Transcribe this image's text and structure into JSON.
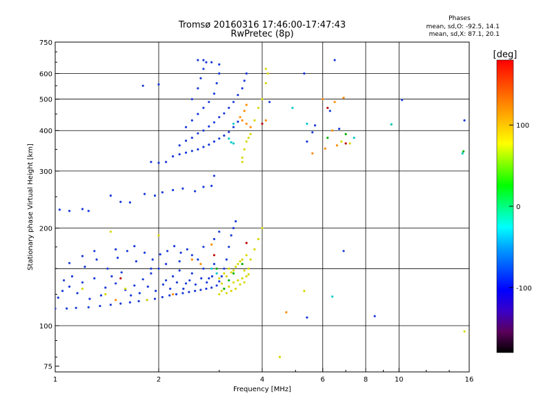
{
  "chart_data": {
    "type": "scatter",
    "title": "Tromsø 20160316 17:46:00-17:47:43",
    "subtitle": "RwPretec (8p)",
    "stats_title": "Phases",
    "stats_o": "mean, sd,O: -92.5, 14.1",
    "stats_x": "mean, sd,X: 87.1, 20.1",
    "xlabel": "Frequency [MHz]",
    "ylabel": "Stationary phase Virtual Height [km]",
    "x_scale": "log",
    "y_scale": "log",
    "xlim": [
      1,
      16
    ],
    "ylim": [
      72,
      750
    ],
    "x_ticks": [
      "1",
      "2",
      "4",
      "6",
      "8",
      "10",
      "16"
    ],
    "y_ticks": [
      "75",
      "100",
      "200",
      "300",
      "400",
      "500",
      "600",
      "750"
    ],
    "x_grid": [
      2,
      4,
      6,
      8,
      10
    ],
    "y_grid": [
      100,
      150,
      200,
      300,
      400,
      500,
      600
    ],
    "grid": true,
    "colorbar": {
      "label": "[deg]",
      "range": [
        -180,
        180
      ],
      "ticks": [
        "100",
        "0",
        "-100"
      ],
      "colors": [
        "#000000",
        "#5a005a",
        "#3a00c8",
        "#0000ff",
        "#0050ff",
        "#00a0ff",
        "#00ffff",
        "#00ff80",
        "#00ff00",
        "#80ff00",
        "#ffff00",
        "#ffc000",
        "#ff8000",
        "#ff4000",
        "#ff0000"
      ]
    },
    "series": [
      {
        "color": "#1a3ad8",
        "points": [
          [
            1.0,
            113
          ],
          [
            1.08,
            113
          ],
          [
            1.15,
            113.5
          ],
          [
            1.25,
            114
          ],
          [
            1.35,
            115
          ],
          [
            1.45,
            116
          ],
          [
            1.55,
            117
          ],
          [
            1.65,
            118
          ],
          [
            1.75,
            119
          ],
          [
            1.85,
            120
          ],
          [
            1.95,
            121
          ],
          [
            2.05,
            122.5
          ],
          [
            2.15,
            124
          ],
          [
            2.25,
            125
          ],
          [
            2.35,
            126
          ],
          [
            2.45,
            127
          ],
          [
            2.55,
            128
          ],
          [
            2.65,
            129
          ],
          [
            2.75,
            130
          ],
          [
            2.85,
            131
          ],
          [
            2.95,
            133
          ],
          [
            3.0,
            137
          ],
          [
            3.05,
            142
          ],
          [
            3.1,
            150
          ],
          [
            3.15,
            160
          ],
          [
            3.2,
            175
          ],
          [
            3.25,
            190
          ],
          [
            3.3,
            200
          ],
          [
            3.35,
            210
          ],
          [
            1.05,
            128
          ],
          [
            1.1,
            132
          ],
          [
            1.2,
            136
          ],
          [
            1.3,
            140
          ],
          [
            1.4,
            131
          ],
          [
            1.5,
            135
          ],
          [
            1.6,
            129
          ],
          [
            1.7,
            133
          ],
          [
            1.8,
            139
          ],
          [
            1.9,
            145
          ],
          [
            2.0,
            150
          ],
          [
            2.1,
            138
          ],
          [
            2.2,
            142
          ],
          [
            2.3,
            148
          ],
          [
            2.4,
            135
          ],
          [
            2.5,
            145
          ],
          [
            2.6,
            160
          ],
          [
            2.7,
            150
          ],
          [
            2.8,
            140
          ],
          [
            2.9,
            155
          ],
          [
            1.02,
            122
          ],
          [
            1.12,
            142
          ],
          [
            1.22,
            152
          ],
          [
            1.32,
            160
          ],
          [
            1.42,
            150
          ],
          [
            1.52,
            162
          ],
          [
            1.62,
            170
          ],
          [
            1.72,
            158
          ],
          [
            1.82,
            168
          ],
          [
            1.92,
            160
          ],
          [
            2.02,
            166
          ],
          [
            2.12,
            170
          ],
          [
            2.22,
            176
          ],
          [
            2.32,
            168
          ],
          [
            2.42,
            172
          ],
          [
            1.06,
            138
          ],
          [
            1.16,
            126
          ],
          [
            1.26,
            121
          ],
          [
            1.36,
            124
          ],
          [
            1.46,
            142
          ],
          [
            1.56,
            146
          ],
          [
            1.66,
            124
          ],
          [
            1.76,
            126
          ],
          [
            1.86,
            132
          ],
          [
            1.96,
            128
          ],
          [
            2.06,
            134
          ],
          [
            2.16,
            130
          ],
          [
            2.26,
            136
          ],
          [
            2.36,
            130
          ],
          [
            2.46,
            138
          ],
          [
            2.56,
            134
          ],
          [
            2.66,
            140
          ],
          [
            2.76,
            136
          ],
          [
            2.86,
            142
          ],
          [
            1.1,
            156
          ],
          [
            1.2,
            164
          ],
          [
            1.3,
            170
          ],
          [
            1.5,
            172
          ],
          [
            1.7,
            176
          ],
          [
            1.9,
            150
          ],
          [
            2.1,
            155
          ],
          [
            2.3,
            158
          ],
          [
            2.5,
            165
          ],
          [
            2.7,
            175
          ],
          [
            2.9,
            185
          ],
          [
            3.0,
            195
          ],
          [
            1.03,
            228
          ],
          [
            1.1,
            226
          ],
          [
            1.2,
            229
          ],
          [
            1.25,
            226
          ],
          [
            1.45,
            252
          ],
          [
            1.55,
            241
          ],
          [
            1.65,
            240
          ],
          [
            1.82,
            255
          ],
          [
            1.95,
            252
          ],
          [
            2.05,
            258
          ],
          [
            2.2,
            262
          ],
          [
            2.35,
            265
          ],
          [
            2.55,
            260
          ],
          [
            2.7,
            268
          ],
          [
            2.85,
            270
          ],
          [
            2.9,
            290
          ],
          [
            2.2,
            333
          ],
          [
            2.3,
            338
          ],
          [
            2.4,
            342
          ],
          [
            2.5,
            346
          ],
          [
            2.6,
            350
          ],
          [
            2.7,
            356
          ],
          [
            2.8,
            362
          ],
          [
            2.9,
            370
          ],
          [
            3.0,
            378
          ],
          [
            3.1,
            386
          ],
          [
            3.2,
            396
          ],
          [
            3.3,
            410
          ],
          [
            3.4,
            426
          ],
          [
            2.3,
            360
          ],
          [
            2.4,
            372
          ],
          [
            2.5,
            380
          ],
          [
            2.6,
            392
          ],
          [
            2.7,
            400
          ],
          [
            2.8,
            412
          ],
          [
            2.9,
            424
          ],
          [
            3.0,
            440
          ],
          [
            3.1,
            452
          ],
          [
            3.2,
            470
          ],
          [
            3.3,
            490
          ],
          [
            3.4,
            515
          ],
          [
            3.5,
            540
          ],
          [
            3.55,
            570
          ],
          [
            3.6,
            600
          ],
          [
            2.4,
            410
          ],
          [
            2.5,
            430
          ],
          [
            2.6,
            450
          ],
          [
            2.7,
            470
          ],
          [
            2.8,
            490
          ],
          [
            2.9,
            520
          ],
          [
            2.95,
            560
          ],
          [
            3.0,
            600
          ],
          [
            3.0,
            640
          ],
          [
            2.5,
            500
          ],
          [
            2.6,
            540
          ],
          [
            2.65,
            580
          ],
          [
            2.7,
            620
          ],
          [
            2.75,
            650
          ],
          [
            2.85,
            650
          ],
          [
            2.1,
            320
          ],
          [
            2.0,
            318
          ],
          [
            1.9,
            320
          ],
          [
            2.6,
            660
          ],
          [
            2.7,
            660
          ],
          [
            2.0,
            555
          ],
          [
            1.8,
            550
          ],
          [
            6.5,
            660
          ],
          [
            5.3,
            600
          ],
          [
            5.7,
            415
          ],
          [
            5.6,
            395
          ],
          [
            5.4,
            370
          ],
          [
            6.3,
            460
          ],
          [
            6.7,
            405
          ],
          [
            10.2,
            497
          ],
          [
            15.5,
            430
          ],
          [
            8.5,
            107
          ],
          [
            6.9,
            170
          ],
          [
            4.2,
            490
          ],
          [
            5.4,
            106
          ]
        ]
      },
      {
        "color": "#d8d800",
        "points": [
          [
            3.0,
            125
          ],
          [
            3.05,
            128
          ],
          [
            3.1,
            130
          ],
          [
            3.15,
            126
          ],
          [
            3.2,
            132
          ],
          [
            3.25,
            128
          ],
          [
            3.3,
            136
          ],
          [
            3.35,
            130
          ],
          [
            3.4,
            138
          ],
          [
            3.45,
            134
          ],
          [
            3.5,
            140
          ],
          [
            3.55,
            136
          ],
          [
            3.6,
            142
          ],
          [
            3.65,
            150
          ],
          [
            3.7,
            160
          ],
          [
            3.8,
            172
          ],
          [
            3.9,
            185
          ],
          [
            4.0,
            200
          ],
          [
            3.0,
            140
          ],
          [
            3.1,
            145
          ],
          [
            3.2,
            150
          ],
          [
            3.3,
            148
          ],
          [
            3.4,
            155
          ],
          [
            3.5,
            160
          ],
          [
            3.6,
            165
          ],
          [
            3.05,
            135
          ],
          [
            3.15,
            142
          ],
          [
            3.25,
            146
          ],
          [
            3.35,
            152
          ],
          [
            3.45,
            158
          ],
          [
            3.55,
            148
          ],
          [
            3.65,
            144
          ],
          [
            1.2,
            130
          ],
          [
            1.4,
            125
          ],
          [
            1.6,
            130
          ],
          [
            1.85,
            120
          ],
          [
            2.0,
            190
          ],
          [
            1.45,
            195
          ],
          [
            3.5,
            330
          ],
          [
            3.55,
            350
          ],
          [
            3.6,
            370
          ],
          [
            3.65,
            380
          ],
          [
            3.7,
            390
          ],
          [
            3.8,
            430
          ],
          [
            3.9,
            470
          ],
          [
            4.0,
            500
          ],
          [
            4.1,
            560
          ],
          [
            4.1,
            620
          ],
          [
            4.15,
            600
          ],
          [
            3.5,
            320
          ],
          [
            6.8,
            370
          ],
          [
            7.2,
            365
          ],
          [
            9.5,
            418
          ],
          [
            15.5,
            96
          ],
          [
            5.3,
            128
          ],
          [
            4.5,
            80
          ]
        ]
      },
      {
        "color": "#ff8c00",
        "points": [
          [
            3.45,
            440
          ],
          [
            3.55,
            460
          ],
          [
            3.6,
            480
          ],
          [
            3.5,
            430
          ],
          [
            3.6,
            420
          ],
          [
            3.7,
            410
          ],
          [
            2.85,
            178
          ],
          [
            2.5,
            160
          ],
          [
            2.65,
            155
          ],
          [
            1.5,
            120
          ],
          [
            2.2,
            125
          ],
          [
            6.0,
            500
          ],
          [
            6.5,
            490
          ],
          [
            6.9,
            505
          ],
          [
            6.4,
            400
          ],
          [
            6.6,
            360
          ],
          [
            6.1,
            352
          ],
          [
            4.7,
            110
          ],
          [
            5.6,
            340
          ],
          [
            4.1,
            430
          ]
        ]
      },
      {
        "color": "#00c8c8",
        "points": [
          [
            3.2,
            378
          ],
          [
            3.25,
            368
          ],
          [
            3.3,
            365
          ],
          [
            2.85,
            150
          ],
          [
            2.95,
            145
          ],
          [
            3.3,
            420
          ],
          [
            6.4,
            123
          ],
          [
            4.9,
            470
          ],
          [
            5.4,
            420
          ],
          [
            9.5,
            418
          ],
          [
            15.3,
            340
          ],
          [
            7.4,
            380
          ]
        ]
      },
      {
        "color": "#00b000",
        "points": [
          [
            3.1,
            130
          ],
          [
            3.3,
            145
          ],
          [
            3.5,
            155
          ],
          [
            3.2,
            138
          ],
          [
            2.95,
            150
          ],
          [
            7.0,
            390
          ],
          [
            6.2,
            380
          ],
          [
            15.4,
            345
          ]
        ]
      },
      {
        "color": "#c00000",
        "points": [
          [
            3.6,
            180
          ],
          [
            2.9,
            165
          ],
          [
            1.55,
            140
          ],
          [
            6.2,
            470
          ],
          [
            7.0,
            365
          ],
          [
            4.0,
            420
          ]
        ]
      }
    ]
  }
}
